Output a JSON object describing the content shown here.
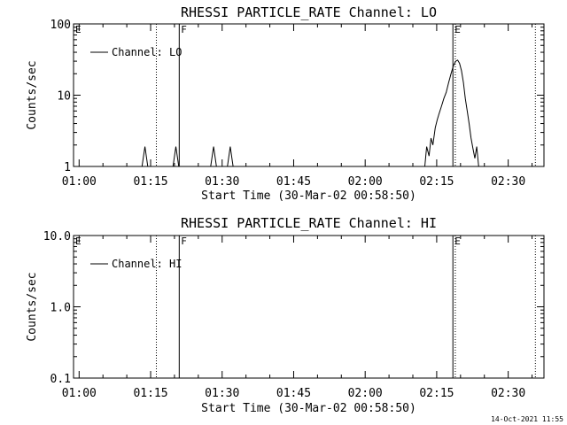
{
  "footer_timestamp": "14-Oct-2021 11:55",
  "chart_data": [
    {
      "type": "line",
      "title": "RHESSI PARTICLE_RATE Channel: LO",
      "xlabel": "Start Time (30-Mar-02 00:58:50)",
      "ylabel": "Counts/sec",
      "yscale": "log",
      "ylim": [
        1,
        100
      ],
      "yticks": [
        1,
        10,
        100
      ],
      "ytick_labels": [
        "1",
        "10",
        "100"
      ],
      "xlim_minutes": [
        58.83,
        157.5
      ],
      "xticks_minutes": [
        60,
        75,
        90,
        105,
        120,
        135,
        150
      ],
      "xtick_labels": [
        "01:00",
        "01:15",
        "01:30",
        "01:45",
        "02:00",
        "02:15",
        "02:30"
      ],
      "legend": {
        "label": "Channel: LO",
        "placement": "top-left"
      },
      "markers": [
        {
          "label": "E",
          "minute": 58.83,
          "style": "dotted"
        },
        {
          "label": "",
          "minute": 76.2,
          "style": "dotted"
        },
        {
          "label": "F",
          "minute": 81.0,
          "style": "solid"
        },
        {
          "label": "E",
          "minute": 138.4,
          "style": "solid"
        },
        {
          "label": "",
          "minute": 138.9,
          "style": "dotted"
        },
        {
          "label": "",
          "minute": 155.7,
          "style": "dotted"
        }
      ],
      "series": [
        {
          "name": "Channel: LO",
          "x": [
            58.83,
            73.2,
            73.8,
            74.4,
            79.7,
            80.3,
            80.9,
            87.6,
            88.2,
            88.8,
            91.1,
            91.7,
            92.3,
            132.5,
            132.9,
            133.4,
            133.8,
            134.2,
            134.7,
            135.1,
            135.5,
            136.0,
            136.5,
            137.0,
            137.5,
            138.0,
            138.5,
            139.0,
            139.4,
            139.8,
            140.2,
            140.6,
            141.0,
            141.4,
            141.8,
            142.2,
            142.6,
            143.0,
            143.4,
            143.8,
            157.5
          ],
          "y": [
            1,
            1,
            1.9,
            1,
            1,
            1.9,
            1,
            1,
            1.9,
            1,
            1,
            1.9,
            1,
            1,
            1.9,
            1.4,
            2.5,
            2,
            3.5,
            4.5,
            5.5,
            7,
            9,
            11,
            15,
            20,
            26,
            30,
            31,
            28,
            22,
            15,
            9,
            6,
            4,
            2.5,
            1.8,
            1.3,
            1.9,
            1,
            1
          ]
        }
      ]
    },
    {
      "type": "line",
      "title": "RHESSI PARTICLE_RATE Channel: HI",
      "xlabel": "Start Time (30-Mar-02 00:58:50)",
      "ylabel": "Counts/sec",
      "yscale": "log",
      "ylim": [
        0.1,
        10
      ],
      "yticks": [
        0.1,
        1,
        10
      ],
      "ytick_labels": [
        "0.1",
        "1.0",
        "10.0"
      ],
      "xlim_minutes": [
        58.83,
        157.5
      ],
      "xticks_minutes": [
        60,
        75,
        90,
        105,
        120,
        135,
        150
      ],
      "xtick_labels": [
        "01:00",
        "01:15",
        "01:30",
        "01:45",
        "02:00",
        "02:15",
        "02:30"
      ],
      "legend": {
        "label": "Channel: HI",
        "placement": "top-left"
      },
      "markers": [
        {
          "label": "E",
          "minute": 58.83,
          "style": "dotted"
        },
        {
          "label": "",
          "minute": 76.2,
          "style": "dotted"
        },
        {
          "label": "F",
          "minute": 81.0,
          "style": "solid"
        },
        {
          "label": "E",
          "minute": 138.4,
          "style": "solid"
        },
        {
          "label": "",
          "minute": 138.9,
          "style": "dotted"
        },
        {
          "label": "",
          "minute": 155.7,
          "style": "dotted"
        }
      ],
      "series": [
        {
          "name": "Channel: HI",
          "x": [],
          "y": []
        }
      ]
    }
  ]
}
